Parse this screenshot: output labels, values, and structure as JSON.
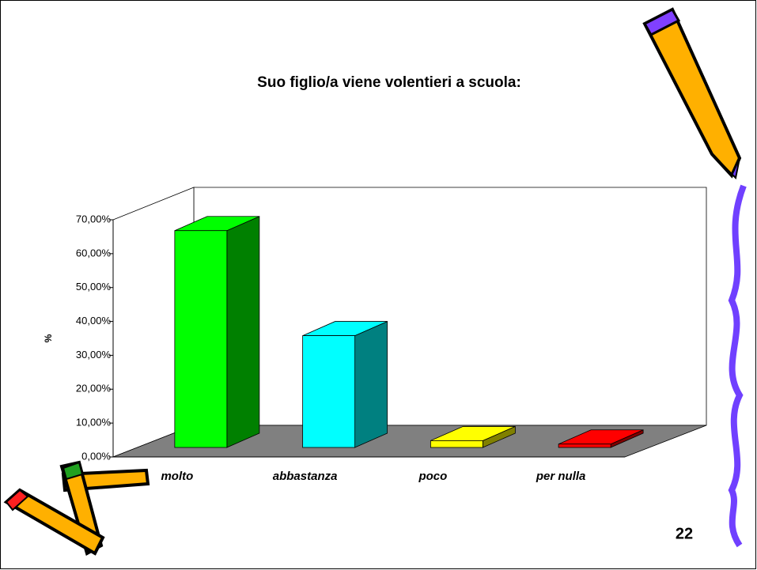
{
  "chart_data": {
    "type": "bar3d",
    "title": "Suo figlio/a viene volentieri a scuola:",
    "y_label": "%",
    "categories": [
      "molto",
      "abbastanza",
      "poco",
      "per nulla"
    ],
    "values": [
      64,
      33,
      2,
      1
    ],
    "colors": [
      "#00ff00",
      "#00ffff",
      "#ffff00",
      "#ff0000"
    ],
    "side_colors": [
      "#008000",
      "#008080",
      "#808000",
      "#800000"
    ],
    "ylim": [
      0,
      70
    ],
    "yticks": [
      {
        "value": 0,
        "label": "0,00%"
      },
      {
        "value": 10,
        "label": "10,00%"
      },
      {
        "value": 20,
        "label": "20,00%"
      },
      {
        "value": 30,
        "label": "30,00%"
      },
      {
        "value": 40,
        "label": "40,00%"
      },
      {
        "value": 50,
        "label": "50,00%"
      },
      {
        "value": 60,
        "label": "60,00%"
      },
      {
        "value": 70,
        "label": "70,00%"
      }
    ]
  },
  "slide": {
    "number": "22"
  }
}
